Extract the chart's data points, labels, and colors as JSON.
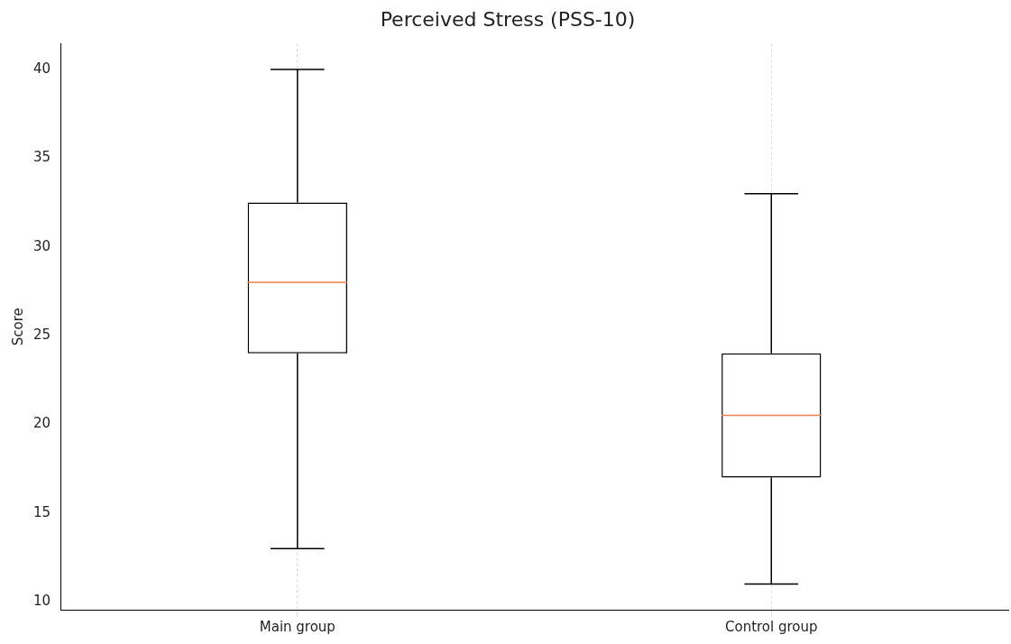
{
  "chart_data": {
    "type": "box",
    "title": "Perceived Stress (PSS-10)",
    "ylabel": "Score",
    "categories": [
      "Main group",
      "Control group"
    ],
    "boxes": [
      {
        "low": 13,
        "q1": 24,
        "median": 28,
        "q3": 32.5,
        "high": 40
      },
      {
        "low": 11,
        "q1": 17,
        "median": 20.5,
        "q3": 24,
        "high": 33
      }
    ],
    "color": "#000000",
    "ylim": [
      9.55,
      41.45
    ],
    "yticks": [
      10,
      15,
      20,
      25,
      30,
      35,
      40
    ],
    "grid": "x",
    "legend": false
  }
}
